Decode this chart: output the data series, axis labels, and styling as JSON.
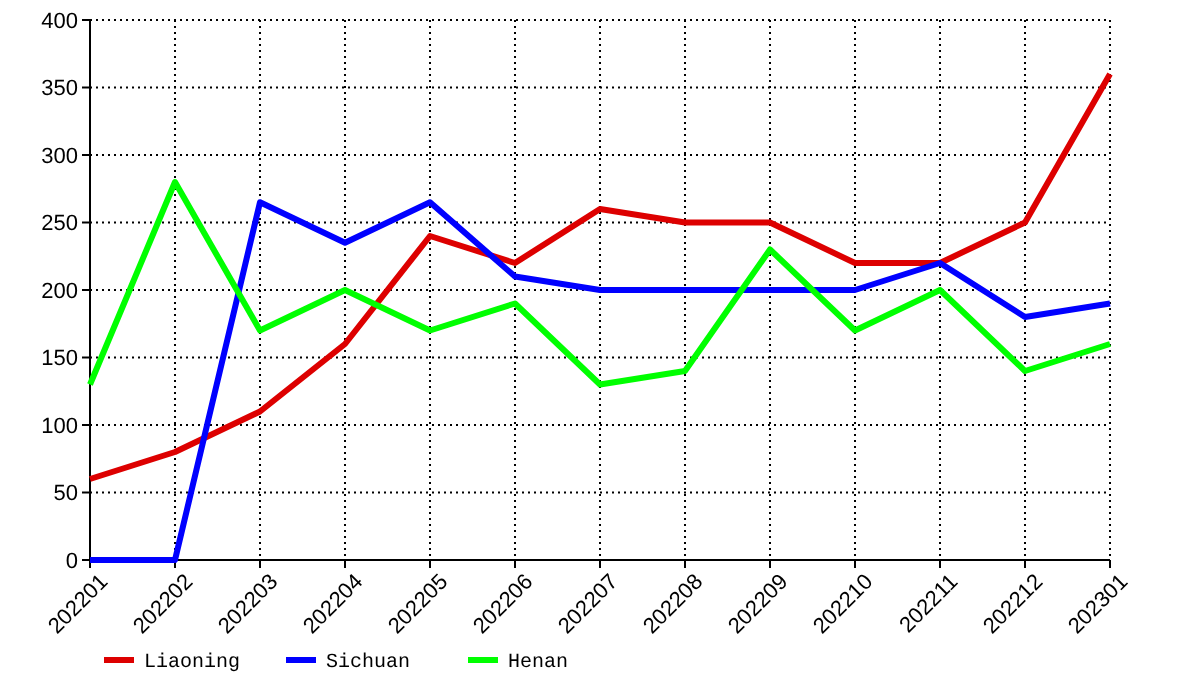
{
  "chart_data": {
    "type": "line",
    "categories": [
      "202201",
      "202202",
      "202203",
      "202204",
      "202205",
      "202206",
      "202207",
      "202208",
      "202209",
      "202210",
      "202211",
      "202212",
      "202301"
    ],
    "series": [
      {
        "name": "Liaoning",
        "color": "#dd0000",
        "values": [
          60,
          80,
          110,
          160,
          240,
          220,
          260,
          250,
          250,
          220,
          220,
          250,
          360
        ]
      },
      {
        "name": "Sichuan",
        "color": "#0000ff",
        "values": [
          0,
          0,
          265,
          235,
          265,
          210,
          200,
          200,
          200,
          200,
          220,
          180,
          190
        ]
      },
      {
        "name": "Henan",
        "color": "#00ff00",
        "values": [
          130,
          280,
          170,
          200,
          170,
          190,
          130,
          140,
          230,
          170,
          200,
          140,
          160
        ]
      }
    ],
    "ylim": [
      0,
      400
    ],
    "yticks": [
      0,
      50,
      100,
      150,
      200,
      250,
      300,
      350,
      400
    ],
    "grid": true,
    "legend": "bottom",
    "marker": "none",
    "line_style": "solid"
  }
}
